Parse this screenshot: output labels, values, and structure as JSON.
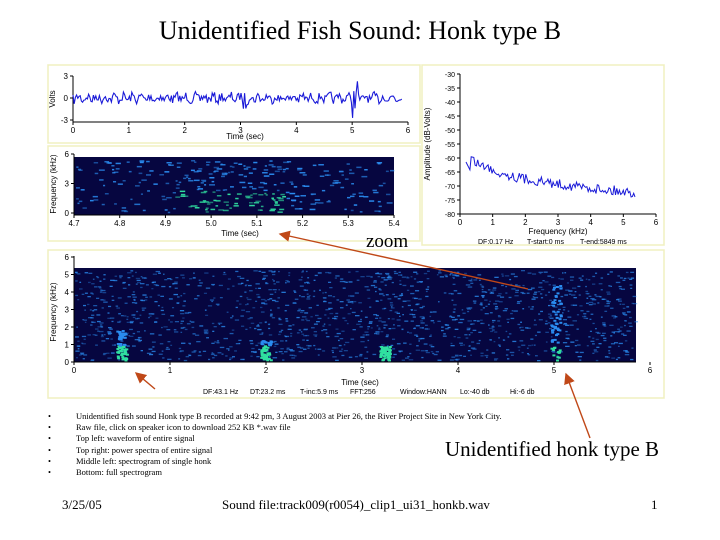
{
  "slide": {
    "title": "Unidentified Fish Sound: Honk type B",
    "zoom_label": "zoom",
    "honk_label": "Unidentified honk type B",
    "bullets": [
      "Unidentified fish sound Honk type B recorded at 9:42 pm, 3 August 2003 at Pier 26, the River Project Site in New York City.",
      "Raw file, click on speaker icon to download 252 KB *.wav file",
      "Top left: waveform of entire signal",
      "Top right: power spectra of entire signal",
      "Middle left: spectrogram of single honk",
      "Bottom: full spectrogram"
    ],
    "footer": {
      "date": "3/25/05",
      "file": "Sound file:track009(r0054)_clip1_ui31_honkb.wav",
      "page": "1"
    }
  },
  "colors": {
    "trace": "#1a1ad8",
    "spec_bg": "#060640",
    "spec_mid": "#2a8cf0",
    "spec_hot": "#30e0a0",
    "panel_border": "#f0f0c0",
    "arrow": "#c04818"
  },
  "chart_data": [
    {
      "type": "line",
      "name": "waveform",
      "xlabel": "Time (sec)",
      "ylabel": "Volts",
      "xticks": [
        "0",
        "1",
        "2",
        "3",
        "4",
        "5",
        "6"
      ],
      "yticks": [
        "3",
        "0",
        "-3"
      ],
      "xlim": [
        0,
        6
      ],
      "ylim": [
        -3,
        3
      ]
    },
    {
      "type": "heatmap",
      "name": "honk-spectrogram",
      "xlabel": "Time (sec)",
      "ylabel": "Frequency (kHz)",
      "xticks": [
        "4.7",
        "4.8",
        "4.9",
        "5.0",
        "5.1",
        "5.2",
        "5.3",
        "5.4"
      ],
      "yticks": [
        "6",
        "3",
        "0"
      ],
      "xlim": [
        4.7,
        5.4
      ],
      "ylim": [
        0,
        6
      ]
    },
    {
      "type": "line",
      "name": "power-spectrum",
      "xlabel": "Frequency (kHz)",
      "ylabel": "Amplitude (dB-Volts)",
      "xticks": [
        "0",
        "1",
        "2",
        "3",
        "4",
        "5",
        "6"
      ],
      "yticks": [
        "-30",
        "-35",
        "-40",
        "-45",
        "-50",
        "-55",
        "-60",
        "-65",
        "-70",
        "-75",
        "-80"
      ],
      "xlim": [
        0,
        6
      ],
      "ylim": [
        -80,
        -30
      ],
      "info": [
        "DF:0.17 Hz",
        "T-start:0 ms",
        "T-end:5849 ms"
      ]
    },
    {
      "type": "heatmap",
      "name": "full-spectrogram",
      "xlabel": "Time (sec)",
      "ylabel": "Frequency (kHz)",
      "xticks": [
        "0",
        "1",
        "2",
        "3",
        "4",
        "5",
        "6"
      ],
      "yticks": [
        "6",
        "5",
        "4",
        "3",
        "2",
        "1",
        "0"
      ],
      "xlim": [
        0,
        6
      ],
      "ylim": [
        0,
        6
      ],
      "info": [
        "DF:43.1 Hz",
        "DT:23.2 ms",
        "T-inc:5.9 ms",
        "FFT:256",
        "Window:HANN",
        "Lo:-40 db",
        "Hi:-6 db"
      ]
    }
  ]
}
